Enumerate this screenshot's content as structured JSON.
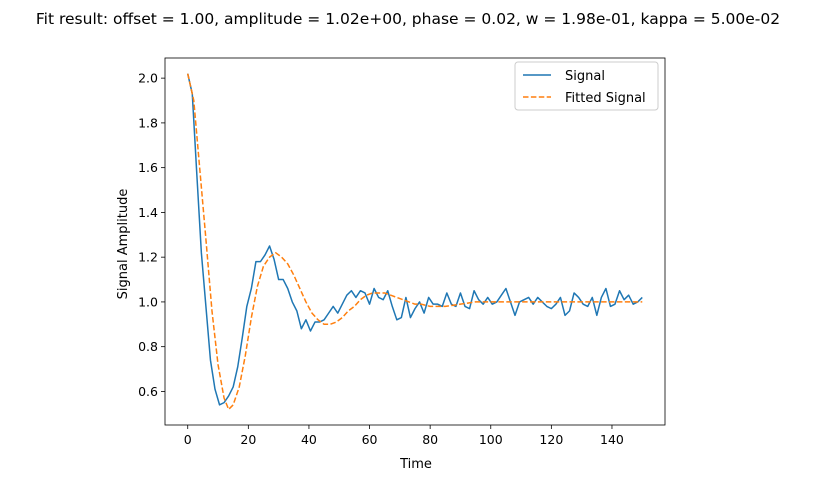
{
  "chart_data": {
    "type": "line",
    "title": "Fit result: offset = 1.00, amplitude = 1.02e+00, phase = 0.02, w = 1.98e-01, kappa = 5.00e-02",
    "xlabel": "Time",
    "ylabel": "Signal Amplitude",
    "xlim": [
      -7.5,
      157.5
    ],
    "ylim": [
      0.45,
      2.09
    ],
    "xticks": [
      0,
      20,
      40,
      60,
      80,
      100,
      120,
      140
    ],
    "yticks": [
      0.6,
      0.8,
      1.0,
      1.2,
      1.4,
      1.6,
      1.8,
      2.0
    ],
    "xtick_labels": [
      "0",
      "20",
      "40",
      "60",
      "80",
      "100",
      "120",
      "140"
    ],
    "ytick_labels": [
      "0.6",
      "0.8",
      "1.0",
      "1.2",
      "1.4",
      "1.6",
      "1.8",
      "2.0"
    ],
    "grid": false,
    "legend": "top-right",
    "series": [
      {
        "name": "Signal",
        "color": "#1f77b4",
        "style": "solid",
        "x": [
          0,
          1.5,
          3,
          4.5,
          6,
          7.5,
          9,
          10.5,
          12,
          13.5,
          15,
          16.5,
          18,
          19.5,
          21,
          22.5,
          24,
          25.5,
          27,
          28.5,
          30,
          31.5,
          33,
          34.5,
          36,
          37.5,
          39,
          40.5,
          42,
          43.5,
          45,
          46.5,
          48,
          49.5,
          51,
          52.5,
          54,
          55.5,
          57,
          58.5,
          60,
          61.5,
          63,
          64.5,
          66,
          67.5,
          69,
          70.5,
          72,
          73.5,
          75,
          76.5,
          78,
          79.5,
          81,
          82.5,
          84,
          85.5,
          87,
          88.5,
          90,
          91.5,
          93,
          94.5,
          96,
          97.5,
          99,
          100.5,
          102,
          103.5,
          105,
          106.5,
          108,
          109.5,
          111,
          112.5,
          114,
          115.5,
          117,
          118.5,
          120,
          121.5,
          123,
          124.5,
          126,
          127.5,
          129,
          130.5,
          132,
          133.5,
          135,
          136.5,
          138,
          139.5,
          141,
          142.5,
          144,
          145.5,
          147,
          148.5,
          150
        ],
        "y": [
          2.02,
          1.93,
          1.57,
          1.22,
          0.98,
          0.74,
          0.61,
          0.54,
          0.55,
          0.58,
          0.62,
          0.71,
          0.84,
          0.98,
          1.06,
          1.18,
          1.18,
          1.21,
          1.25,
          1.19,
          1.1,
          1.1,
          1.06,
          1.0,
          0.96,
          0.88,
          0.92,
          0.87,
          0.91,
          0.91,
          0.92,
          0.95,
          0.98,
          0.95,
          0.99,
          1.03,
          1.05,
          1.02,
          1.05,
          1.04,
          0.99,
          1.06,
          1.02,
          1.01,
          1.05,
          0.98,
          0.92,
          0.93,
          1.02,
          0.93,
          0.97,
          1.0,
          0.95,
          1.02,
          0.99,
          0.99,
          0.98,
          1.04,
          0.99,
          0.98,
          1.04,
          0.98,
          0.97,
          1.05,
          1.01,
          0.99,
          1.02,
          0.99,
          1.0,
          1.03,
          1.06,
          1.0,
          0.94,
          1.0,
          1.01,
          1.02,
          0.99,
          1.02,
          1.0,
          0.98,
          0.97,
          0.99,
          1.02,
          0.94,
          0.96,
          1.04,
          1.02,
          0.99,
          0.98,
          1.02,
          0.94,
          1.02,
          1.06,
          0.98,
          0.99,
          1.05,
          1.01,
          1.03,
          0.99,
          1.0,
          1.02
        ]
      },
      {
        "name": "Fitted Signal",
        "color": "#ff7f0e",
        "style": "dashed",
        "x": [
          0,
          2,
          4,
          6,
          8,
          10,
          12,
          13.5,
          15,
          17,
          19,
          21,
          23,
          25,
          27,
          29,
          31,
          33,
          35,
          37,
          39,
          41,
          43,
          45,
          47,
          49,
          51,
          53,
          55,
          57,
          59,
          61,
          63,
          65,
          67,
          69,
          71,
          73,
          75,
          77,
          80,
          85,
          90,
          95,
          100,
          105,
          110,
          115,
          120,
          125,
          130,
          135,
          140,
          145,
          150
        ],
        "y": [
          2.02,
          1.9,
          1.59,
          1.28,
          0.96,
          0.72,
          0.57,
          0.52,
          0.54,
          0.62,
          0.76,
          0.93,
          1.07,
          1.16,
          1.2,
          1.22,
          1.2,
          1.17,
          1.12,
          1.06,
          1.0,
          0.95,
          0.92,
          0.9,
          0.9,
          0.91,
          0.93,
          0.96,
          0.98,
          1.01,
          1.03,
          1.04,
          1.04,
          1.04,
          1.03,
          1.02,
          1.01,
          1.0,
          0.99,
          0.99,
          0.98,
          0.98,
          0.99,
          1.0,
          1.0,
          1.0,
          1.0,
          1.0,
          1.0,
          1.0,
          1.0,
          1.0,
          1.0,
          1.0,
          1.0
        ]
      }
    ]
  }
}
